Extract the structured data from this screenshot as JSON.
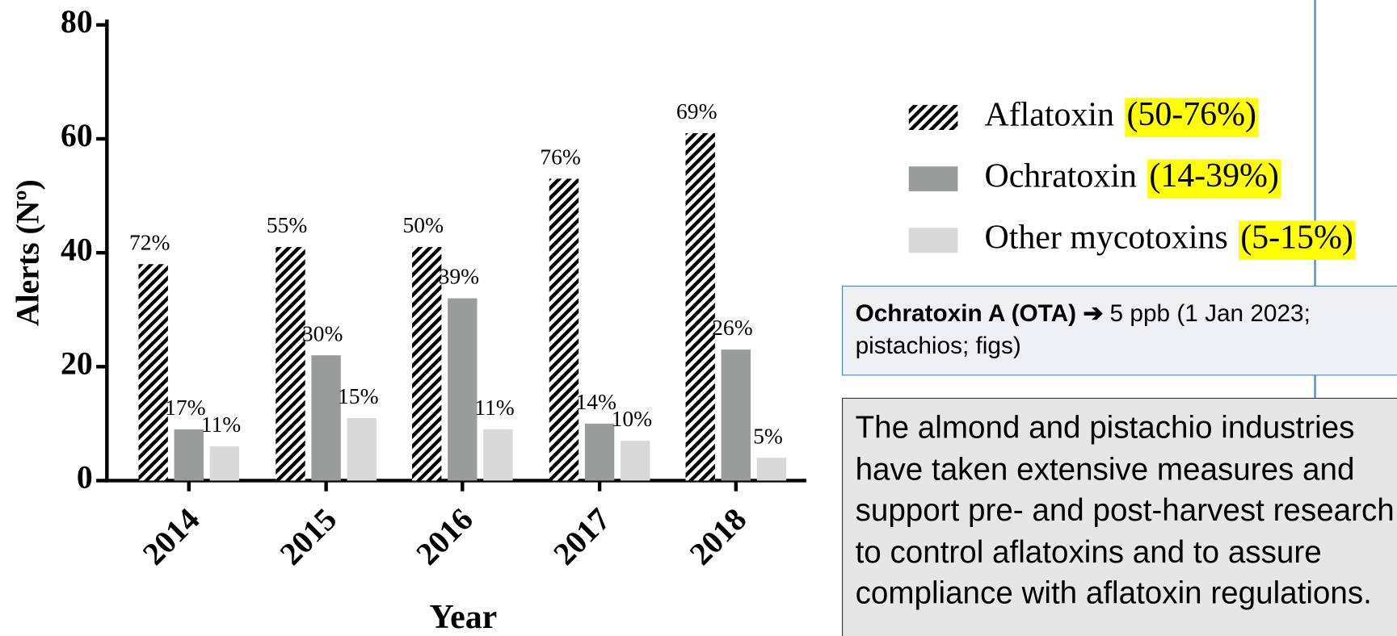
{
  "chart_data": {
    "type": "bar",
    "categories": [
      "2014",
      "2015",
      "2016",
      "2017",
      "2018"
    ],
    "series": [
      {
        "name": "Aflatoxin",
        "range": "(50-76%)",
        "color": "#000000",
        "pattern": "hatch",
        "values": [
          38,
          41,
          41,
          53,
          61
        ],
        "percent_labels": [
          "72%",
          "55%",
          "50%",
          "76%",
          "69%"
        ]
      },
      {
        "name": "Ochratoxin",
        "range": "(14-39%)",
        "color": "#9a9b9b",
        "values": [
          9,
          22,
          32,
          10,
          23
        ],
        "percent_labels": [
          "17%",
          "30%",
          "39%",
          "14%",
          "26%"
        ]
      },
      {
        "name": "Other mycotoxins",
        "range": "(5-15%)",
        "color": "#d9d9d9",
        "values": [
          6,
          11,
          9,
          7,
          4
        ],
        "percent_labels": [
          "11%",
          "15%",
          "11%",
          "10%",
          "5%"
        ]
      }
    ],
    "ylabel": "Alerts (Nº)",
    "xlabel": "Year",
    "ylim": [
      0,
      80
    ],
    "yticks": [
      0,
      20,
      40,
      60,
      80
    ],
    "legend": "right"
  },
  "note_box": {
    "title": "Ochratoxin A (OTA)",
    "arrow": "➔",
    "text": "5 ppb (1 Jan 2023; pistachios; figs)"
  },
  "text_box": {
    "text": "The almond and pistachio industries have taken extensive measures and support pre- and post-harvest research to control aflatoxins and to assure compliance with aflatoxin regulations."
  }
}
